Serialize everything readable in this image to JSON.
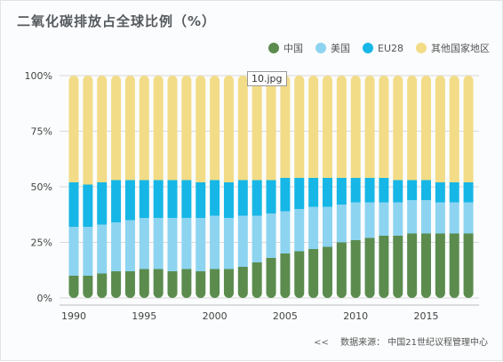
{
  "title": "二氧化碳排放占全球比例（%）",
  "tooltip": "10.jpg",
  "source": {
    "arrows": "<<",
    "text": "数据来源： 中国21世纪议程管理中心"
  },
  "chart_data": {
    "type": "bar",
    "stacked": true,
    "ylim": [
      0,
      100
    ],
    "yticks": [
      "0%",
      "25%",
      "50%",
      "75%",
      "100%"
    ],
    "xticks": [
      1990,
      1995,
      2000,
      2005,
      2010,
      2015
    ],
    "categories": [
      1990,
      1991,
      1992,
      1993,
      1994,
      1995,
      1996,
      1997,
      1998,
      1999,
      2000,
      2001,
      2002,
      2003,
      2004,
      2005,
      2006,
      2007,
      2008,
      2009,
      2010,
      2011,
      2012,
      2013,
      2014,
      2015,
      2016,
      2017,
      2018
    ],
    "series": [
      {
        "name": "中国",
        "color": "#5b8c4e",
        "values": [
          10,
          10,
          11,
          12,
          12,
          13,
          13,
          12,
          13,
          12,
          13,
          13,
          14,
          16,
          18,
          20,
          21,
          22,
          23,
          25,
          26,
          27,
          28,
          28,
          29,
          29,
          29,
          29,
          29
        ]
      },
      {
        "name": "美国",
        "color": "#8dd4f1",
        "values": [
          22,
          22,
          22,
          22,
          23,
          23,
          23,
          24,
          23,
          24,
          24,
          23,
          23,
          21,
          20,
          19,
          19,
          19,
          18,
          17,
          17,
          16,
          15,
          15,
          15,
          15,
          14,
          14,
          14
        ]
      },
      {
        "name": "EU28",
        "color": "#16b7e6",
        "values": [
          20,
          19,
          19,
          19,
          18,
          17,
          17,
          17,
          17,
          16,
          16,
          16,
          16,
          16,
          15,
          15,
          14,
          13,
          13,
          12,
          11,
          11,
          11,
          10,
          9,
          9,
          9,
          9,
          9
        ]
      },
      {
        "name": "其他国家地区",
        "color": "#f3dc87",
        "values": [
          48,
          49,
          48,
          47,
          47,
          47,
          47,
          47,
          47,
          48,
          47,
          48,
          47,
          47,
          47,
          46,
          46,
          46,
          46,
          46,
          46,
          46,
          46,
          47,
          47,
          47,
          48,
          48,
          48
        ]
      }
    ],
    "grid": true,
    "legend_position": "top-right"
  }
}
